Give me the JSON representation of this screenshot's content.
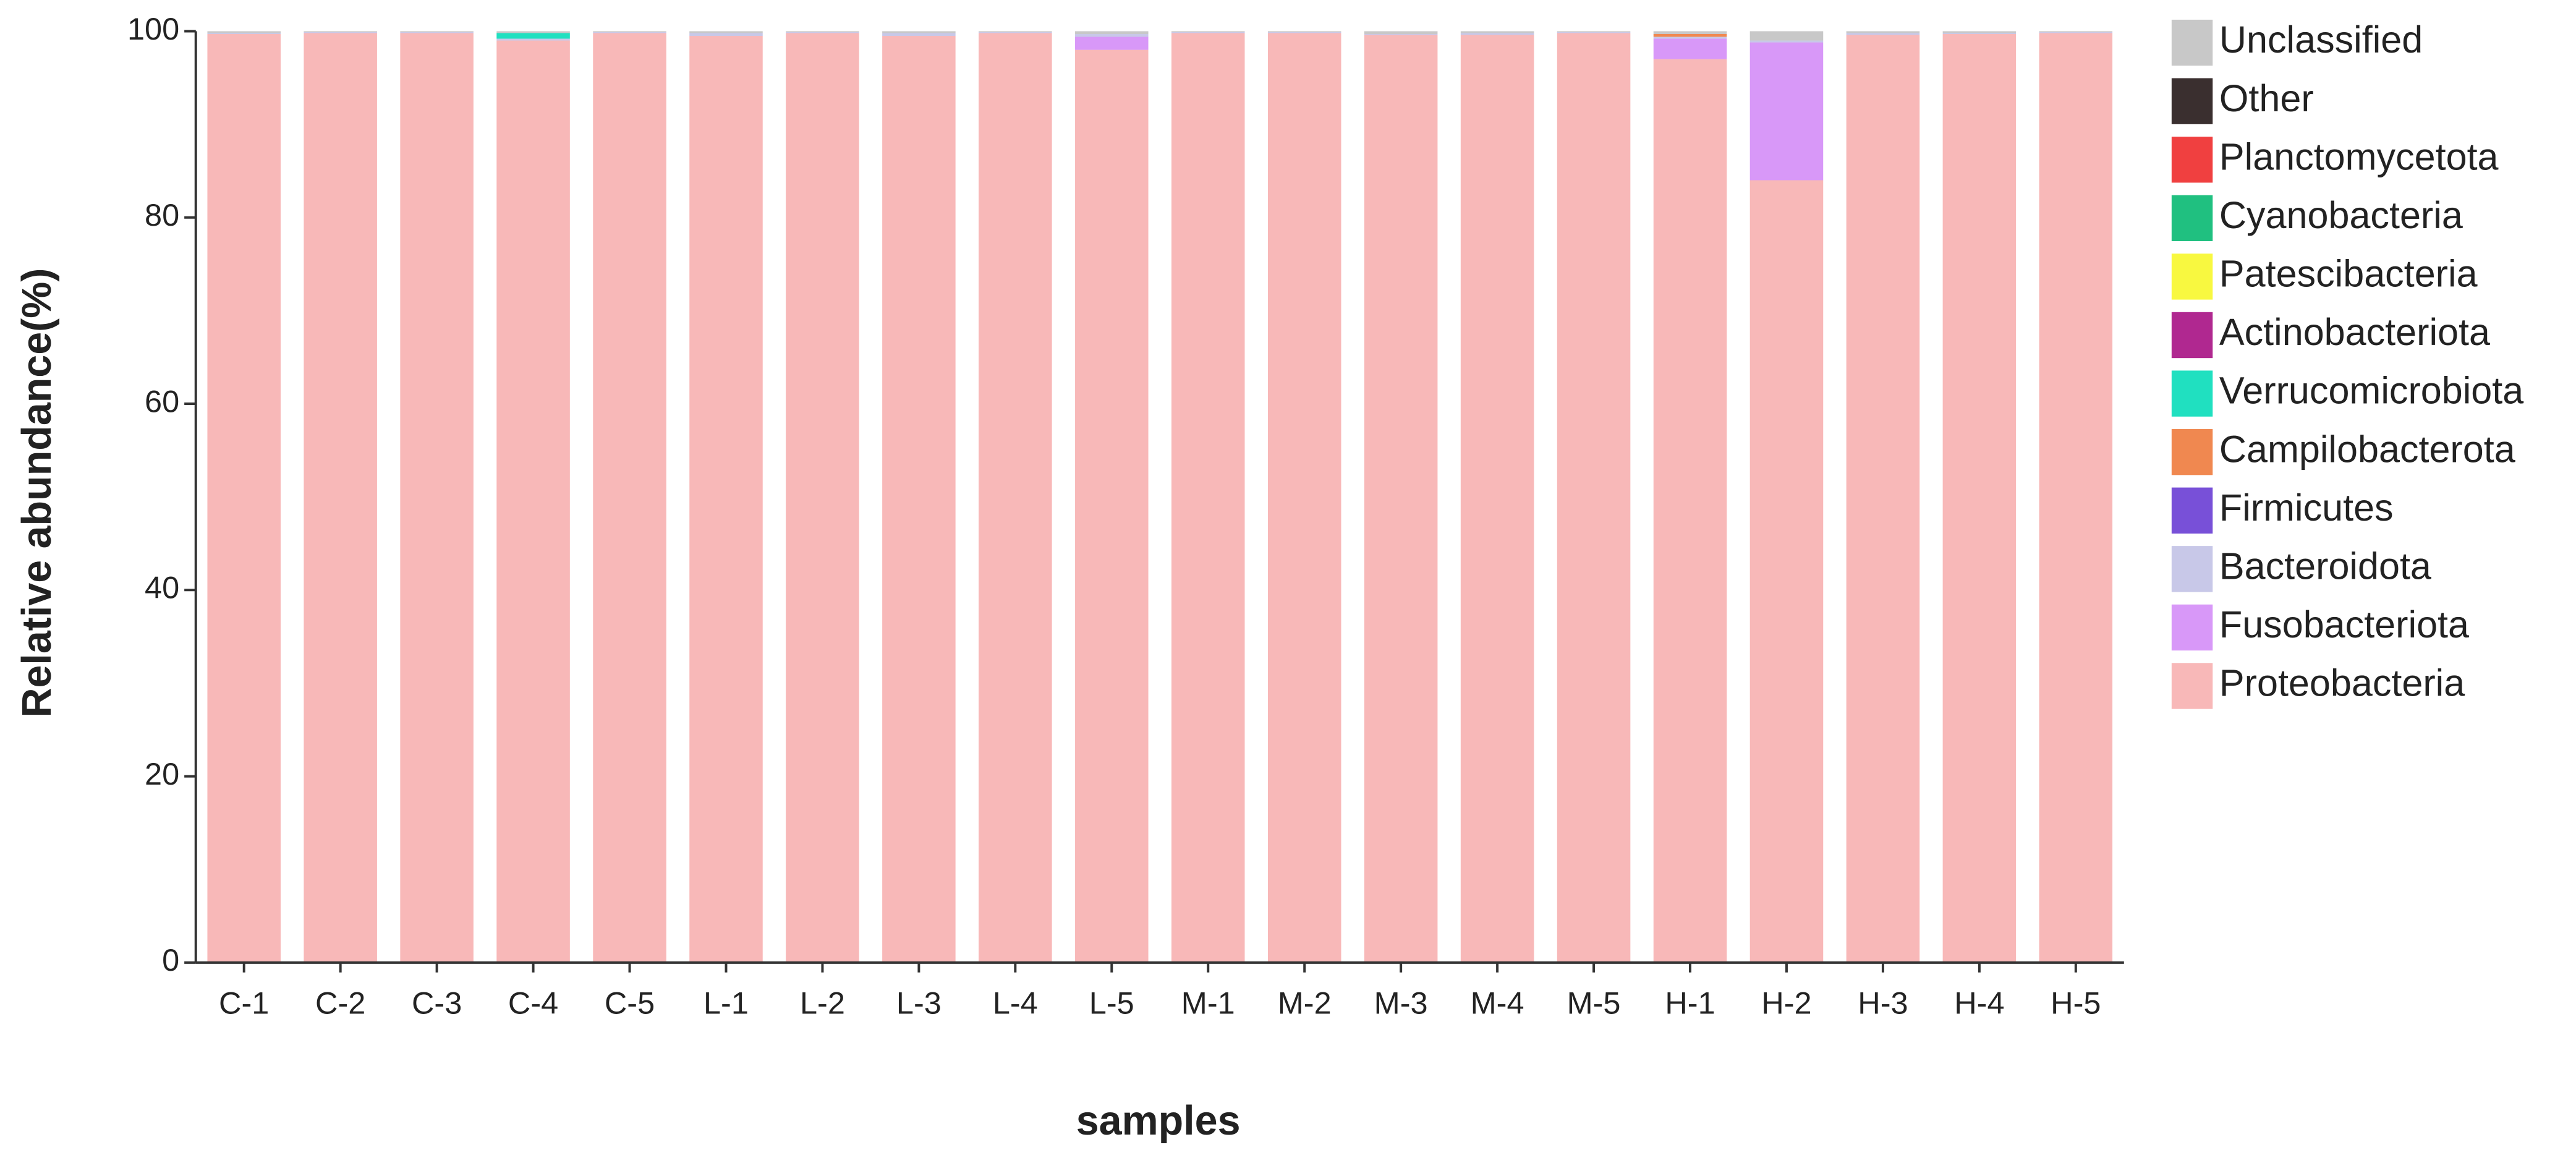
{
  "chart_data": {
    "type": "stacked_bar",
    "x_label": "samples",
    "y_label": "Relative abundance(%)",
    "categories": [
      "C-1",
      "C-2",
      "C-3",
      "C-4",
      "C-5",
      "L-1",
      "L-2",
      "L-3",
      "L-4",
      "L-5",
      "M-1",
      "M-2",
      "M-3",
      "M-4",
      "M-5",
      "H-1",
      "H-2",
      "H-3",
      "H-4",
      "H-5"
    ],
    "ylim": [
      0,
      100
    ],
    "yticks": [
      0,
      20,
      40,
      60,
      80,
      100
    ],
    "series": [
      {
        "name": "Proteobacteria",
        "color": "#f8b8b8",
        "values": [
          99.7,
          99.8,
          99.8,
          99.0,
          99.8,
          99.5,
          99.8,
          99.5,
          99.8,
          98.0,
          99.8,
          99.8,
          99.6,
          99.6,
          99.8,
          97.0,
          84.0,
          99.6,
          99.7,
          99.8
        ]
      },
      {
        "name": "Fusobacteriota",
        "color": "#d898f8",
        "values": [
          0,
          0,
          0,
          0,
          0,
          0,
          0,
          0,
          0,
          1.4,
          0,
          0,
          0,
          0,
          0,
          2.2,
          14.8,
          0,
          0,
          0
        ]
      },
      {
        "name": "Bacteroidota",
        "color": "#c8c8e8",
        "values": [
          0.1,
          0.1,
          0.1,
          0.2,
          0.1,
          0.3,
          0.1,
          0.3,
          0.1,
          0.3,
          0.1,
          0.1,
          0.1,
          0.2,
          0.1,
          0.2,
          0.2,
          0.2,
          0.1,
          0.1
        ]
      },
      {
        "name": "Firmicutes",
        "color": "#7850d8",
        "values": [
          0,
          0,
          0,
          0,
          0,
          0,
          0,
          0,
          0,
          0,
          0,
          0,
          0,
          0,
          0,
          0,
          0,
          0,
          0,
          0
        ]
      },
      {
        "name": "Campilobacterota",
        "color": "#f08850",
        "values": [
          0,
          0,
          0,
          0,
          0,
          0,
          0,
          0,
          0,
          0,
          0,
          0,
          0,
          0,
          0,
          0.3,
          0,
          0,
          0,
          0
        ]
      },
      {
        "name": "Verrucomicrobiota",
        "color": "#20e0c0",
        "values": [
          0,
          0,
          0,
          0.6,
          0,
          0,
          0,
          0,
          0,
          0,
          0,
          0,
          0,
          0,
          0,
          0,
          0,
          0,
          0,
          0
        ]
      },
      {
        "name": "Actinobacteriota",
        "color": "#b02890",
        "values": [
          0,
          0,
          0,
          0,
          0,
          0,
          0,
          0,
          0,
          0,
          0,
          0,
          0,
          0,
          0,
          0,
          0,
          0,
          0,
          0
        ]
      },
      {
        "name": "Patescibacteria",
        "color": "#f8f840",
        "values": [
          0,
          0,
          0,
          0,
          0,
          0,
          0,
          0,
          0,
          0,
          0,
          0,
          0,
          0,
          0,
          0,
          0,
          0,
          0,
          0
        ]
      },
      {
        "name": "Cyanobacteria",
        "color": "#20c080",
        "values": [
          0,
          0,
          0,
          0,
          0,
          0,
          0,
          0,
          0,
          0,
          0,
          0,
          0,
          0,
          0,
          0,
          0,
          0,
          0,
          0
        ]
      },
      {
        "name": "Planctomycetota",
        "color": "#f04040",
        "values": [
          0,
          0,
          0,
          0,
          0,
          0,
          0,
          0,
          0,
          0,
          0,
          0,
          0,
          0,
          0,
          0,
          0,
          0,
          0,
          0
        ]
      },
      {
        "name": "Other",
        "color": "#3a2f2f",
        "values": [
          0,
          0,
          0,
          0,
          0,
          0,
          0,
          0,
          0,
          0,
          0,
          0,
          0,
          0,
          0,
          0,
          0,
          0,
          0,
          0
        ]
      },
      {
        "name": "Unclassified",
        "color": "#c8c8c8",
        "values": [
          0.2,
          0.1,
          0.1,
          0.2,
          0.1,
          0.2,
          0.1,
          0.2,
          0.1,
          0.3,
          0.1,
          0.1,
          0.3,
          0.2,
          0.1,
          0.3,
          1.0,
          0.2,
          0.2,
          0.1
        ]
      }
    ]
  }
}
